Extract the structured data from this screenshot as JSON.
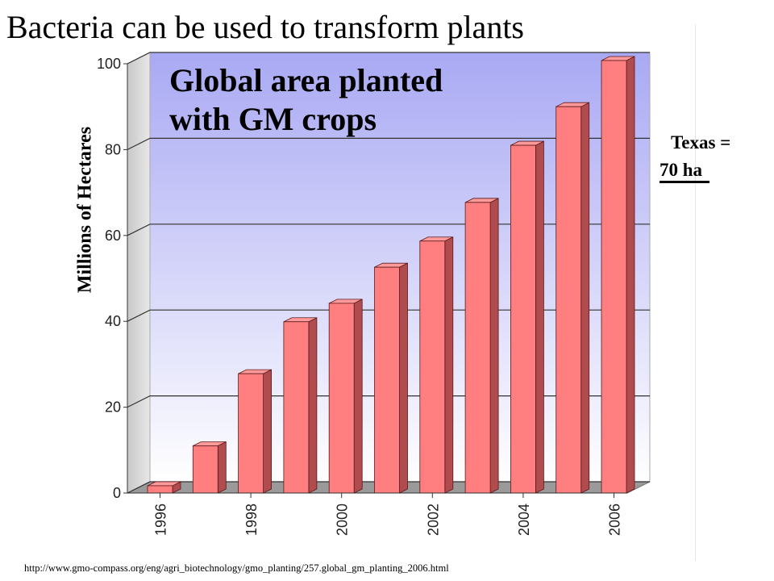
{
  "slide": {
    "title": "Bacteria can be used to transform plants",
    "side_note_line1": "Texas =",
    "side_note_line2": "70 ha",
    "source_url": "http://www.gmo-compass.org/eng/agri_biotechnology/gmo_planting/257.global_gm_planting_2006.html"
  },
  "chart_data": {
    "type": "bar",
    "title": "Global area planted with GM crops",
    "title_lines": [
      "Global area planted",
      "with GM crops"
    ],
    "ylabel": "Millions of Hectares",
    "xlabel": "",
    "categories": [
      "1996",
      "1997",
      "1998",
      "1999",
      "2000",
      "2001",
      "2002",
      "2003",
      "2004",
      "2005",
      "2006"
    ],
    "x_tick_labels": [
      "1996",
      "1998",
      "2000",
      "2002",
      "2004",
      "2006"
    ],
    "values": [
      1.7,
      11,
      27.8,
      39.9,
      44.2,
      52.6,
      58.7,
      67.7,
      81,
      90,
      102
    ],
    "ylim": [
      0,
      100
    ],
    "y_ticks": [
      0,
      20,
      40,
      60,
      80,
      100
    ],
    "y_tick_labels": [
      "0",
      "20",
      "40",
      "60",
      "80",
      "100"
    ],
    "grid": true,
    "colors": {
      "bar": "#ff7f80",
      "bar_side": "#b04b4e",
      "background_top": "#a9a9f4",
      "background_bottom": "#ffffff"
    }
  }
}
